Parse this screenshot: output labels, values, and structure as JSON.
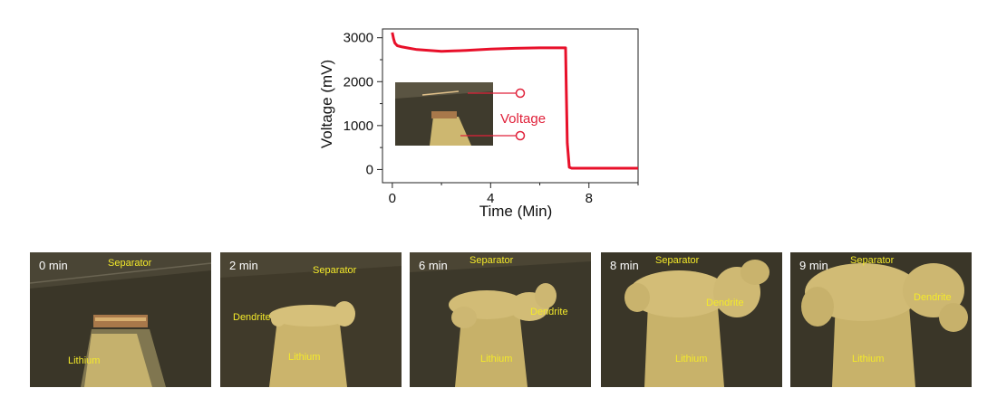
{
  "chart_data": {
    "type": "line",
    "xlabel": "Time (Min)",
    "ylabel": "Voltage (mV)",
    "xlim": [
      -0.4,
      10
    ],
    "ylim": [
      -300,
      3200
    ],
    "x_ticks": [
      0,
      4,
      8
    ],
    "y_ticks": [
      0,
      1000,
      2000,
      3000
    ],
    "series": [
      {
        "color": "#e8102a",
        "x": [
          0,
          0.05,
          0.1,
          0.2,
          0.4,
          0.7,
          1.0,
          1.5,
          2.0,
          2.5,
          3.0,
          4.0,
          5.0,
          6.0,
          6.8,
          7.05,
          7.08,
          7.12,
          7.2,
          7.3,
          8.0,
          9.0,
          10.0
        ],
        "y": [
          3120,
          2980,
          2880,
          2820,
          2790,
          2760,
          2730,
          2710,
          2690,
          2700,
          2710,
          2740,
          2760,
          2770,
          2770,
          2770,
          1800,
          600,
          50,
          30,
          30,
          30,
          30
        ]
      }
    ],
    "inset": {
      "label": "Voltage",
      "color": "#e0213a"
    }
  },
  "frames": [
    {
      "time": "0 min",
      "labels": [
        "Separator",
        "Lithium"
      ]
    },
    {
      "time": "2 min",
      "labels": [
        "Separator",
        "Dendrite",
        "Lithium"
      ]
    },
    {
      "time": "6 min",
      "labels": [
        "Separator",
        "Dendrite",
        "Lithium"
      ]
    },
    {
      "time": "8 min",
      "labels": [
        "Separator",
        "Dendrite",
        "Lithium"
      ]
    },
    {
      "time": "9 min",
      "labels": [
        "Separator",
        "Dendrite",
        "Lithium"
      ]
    }
  ],
  "colors": {
    "line": "#e8102a",
    "frame_background": "#3e3a2c",
    "lithium": "#c9b56a",
    "label_text": "#f4ea2a"
  }
}
